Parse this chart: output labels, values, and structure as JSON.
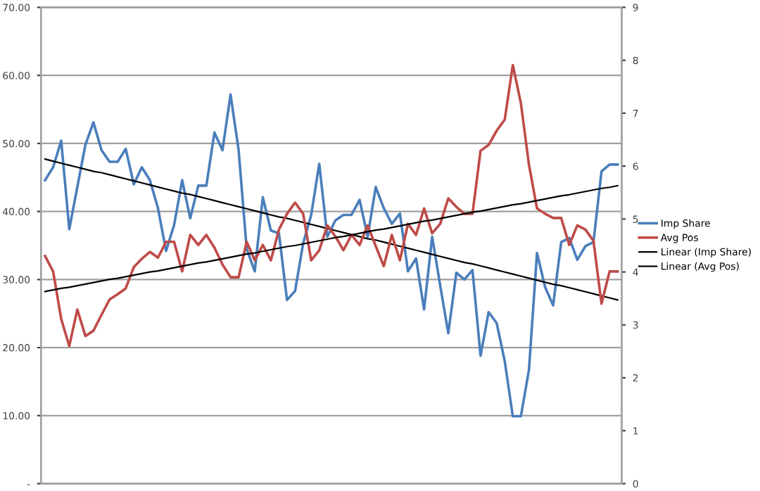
{
  "chart_data": {
    "type": "line",
    "categories": [
      null,
      null,
      null,
      null,
      null,
      null,
      null,
      null,
      null,
      null,
      null,
      null,
      null,
      null,
      null,
      null,
      null,
      null,
      null,
      null,
      null,
      null,
      null,
      null,
      null,
      null,
      null,
      null,
      null,
      null,
      null,
      null,
      null,
      null,
      null,
      null,
      null,
      null,
      null,
      null,
      null,
      null,
      null,
      null,
      null,
      null,
      null,
      null,
      null,
      null,
      null,
      null,
      null,
      null,
      null,
      null,
      null,
      null,
      null,
      null,
      null,
      null,
      null,
      null,
      null,
      null,
      null,
      null,
      null,
      null,
      null,
      null
    ],
    "series": [
      {
        "name": "Imp Share",
        "color": "#4a7ebb",
        "values": [
          44.6,
          46.5,
          50.4,
          37.4,
          43.6,
          49.8,
          53.1,
          49.0,
          47.3,
          47.3,
          49.2,
          44.0,
          46.5,
          44.6,
          40.5,
          34.2,
          38.0,
          44.6,
          39.0,
          43.8,
          43.8,
          51.6,
          49.0,
          57.2,
          49.0,
          34.5,
          31.2,
          42.1,
          37.2,
          36.8,
          27.0,
          28.3,
          35.3,
          39.5,
          47.0,
          36.3,
          38.7,
          39.5,
          39.5,
          41.7,
          36.3,
          43.6,
          40.5,
          38.2,
          39.7,
          31.2,
          33.1,
          25.6,
          36.3,
          29.1,
          22.1,
          31.0,
          30.0,
          31.4,
          18.8,
          25.2,
          23.6,
          18.0,
          9.9,
          9.9,
          16.7,
          33.9,
          28.9,
          26.2,
          35.5,
          36.1,
          32.9,
          34.9,
          35.5,
          45.9,
          46.9,
          46.9
        ]
      },
      {
        "name": "Avg Pos",
        "color": "#be4b48",
        "axis": "y2",
        "values": [
          4.3,
          4.01,
          3.11,
          2.6,
          3.29,
          2.79,
          2.89,
          3.19,
          3.48,
          3.58,
          3.69,
          4.09,
          4.25,
          4.38,
          4.27,
          4.57,
          4.57,
          4.01,
          4.7,
          4.51,
          4.7,
          4.46,
          4.14,
          3.9,
          3.9,
          4.57,
          4.22,
          4.51,
          4.22,
          4.8,
          5.1,
          5.31,
          5.1,
          4.22,
          4.41,
          4.88,
          4.67,
          4.41,
          4.7,
          4.51,
          4.88,
          4.49,
          4.11,
          4.7,
          4.22,
          4.91,
          4.7,
          5.2,
          4.73,
          4.91,
          5.39,
          5.23,
          5.1,
          5.1,
          6.29,
          6.4,
          6.67,
          6.88,
          7.91,
          7.19,
          6.03,
          5.2,
          5.1,
          5.02,
          5.02,
          4.51,
          4.88,
          4.8,
          4.59,
          3.4,
          4.01,
          4.01
        ]
      },
      {
        "name": "Linear (Imp Share)",
        "color": "#000000",
        "values": [
          47.7,
          47.4,
          47.1,
          46.8,
          46.5,
          46.2,
          45.9,
          45.7,
          45.4,
          45.1,
          44.8,
          44.5,
          44.2,
          43.9,
          43.6,
          43.3,
          43.0,
          42.7,
          42.5,
          42.2,
          41.9,
          41.6,
          41.3,
          41.0,
          40.7,
          40.4,
          40.1,
          39.8,
          39.5,
          39.2,
          39.0,
          38.7,
          38.4,
          38.1,
          37.8,
          37.5,
          37.2,
          36.9,
          36.6,
          36.3,
          36.0,
          35.8,
          35.5,
          35.2,
          34.9,
          34.6,
          34.3,
          34.0,
          33.7,
          33.4,
          33.1,
          32.8,
          32.5,
          32.3,
          32.0,
          31.7,
          31.4,
          31.1,
          30.8,
          30.5,
          30.2,
          29.9,
          29.6,
          29.3,
          29.1,
          28.8,
          28.5,
          28.2,
          27.9,
          27.6,
          27.3,
          27.0
        ]
      },
      {
        "name": "Linear (Avg Pos)",
        "color": "#000000",
        "axis": "y2",
        "values": [
          3.63,
          3.66,
          3.69,
          3.71,
          3.74,
          3.77,
          3.8,
          3.83,
          3.86,
          3.88,
          3.91,
          3.94,
          3.97,
          4.0,
          4.02,
          4.05,
          4.08,
          4.11,
          4.14,
          4.17,
          4.19,
          4.22,
          4.25,
          4.28,
          4.31,
          4.34,
          4.36,
          4.39,
          4.42,
          4.45,
          4.48,
          4.5,
          4.53,
          4.56,
          4.59,
          4.62,
          4.65,
          4.67,
          4.7,
          4.73,
          4.76,
          4.79,
          4.81,
          4.84,
          4.87,
          4.9,
          4.93,
          4.96,
          4.98,
          5.01,
          5.04,
          5.07,
          5.1,
          5.13,
          5.15,
          5.18,
          5.21,
          5.24,
          5.27,
          5.29,
          5.32,
          5.35,
          5.38,
          5.41,
          5.44,
          5.46,
          5.49,
          5.52,
          5.55,
          5.58,
          5.6,
          5.63
        ]
      }
    ],
    "ylim": [
      0,
      70
    ],
    "yticks": [
      {
        "value": 0,
        "label": "-"
      },
      {
        "value": 10,
        "label": "10.00"
      },
      {
        "value": 20,
        "label": "20.00"
      },
      {
        "value": 30,
        "label": "30.00"
      },
      {
        "value": 40,
        "label": "40.00"
      },
      {
        "value": 50,
        "label": "50.00"
      },
      {
        "value": 60,
        "label": "60.00"
      },
      {
        "value": 70,
        "label": "70.00"
      }
    ],
    "y2lim": [
      0,
      9
    ],
    "y2ticks": [
      0,
      1,
      2,
      3,
      4,
      5,
      6,
      7,
      8,
      9
    ],
    "grid": "y",
    "legend": "right",
    "marker": "none",
    "line_style": "solid"
  }
}
